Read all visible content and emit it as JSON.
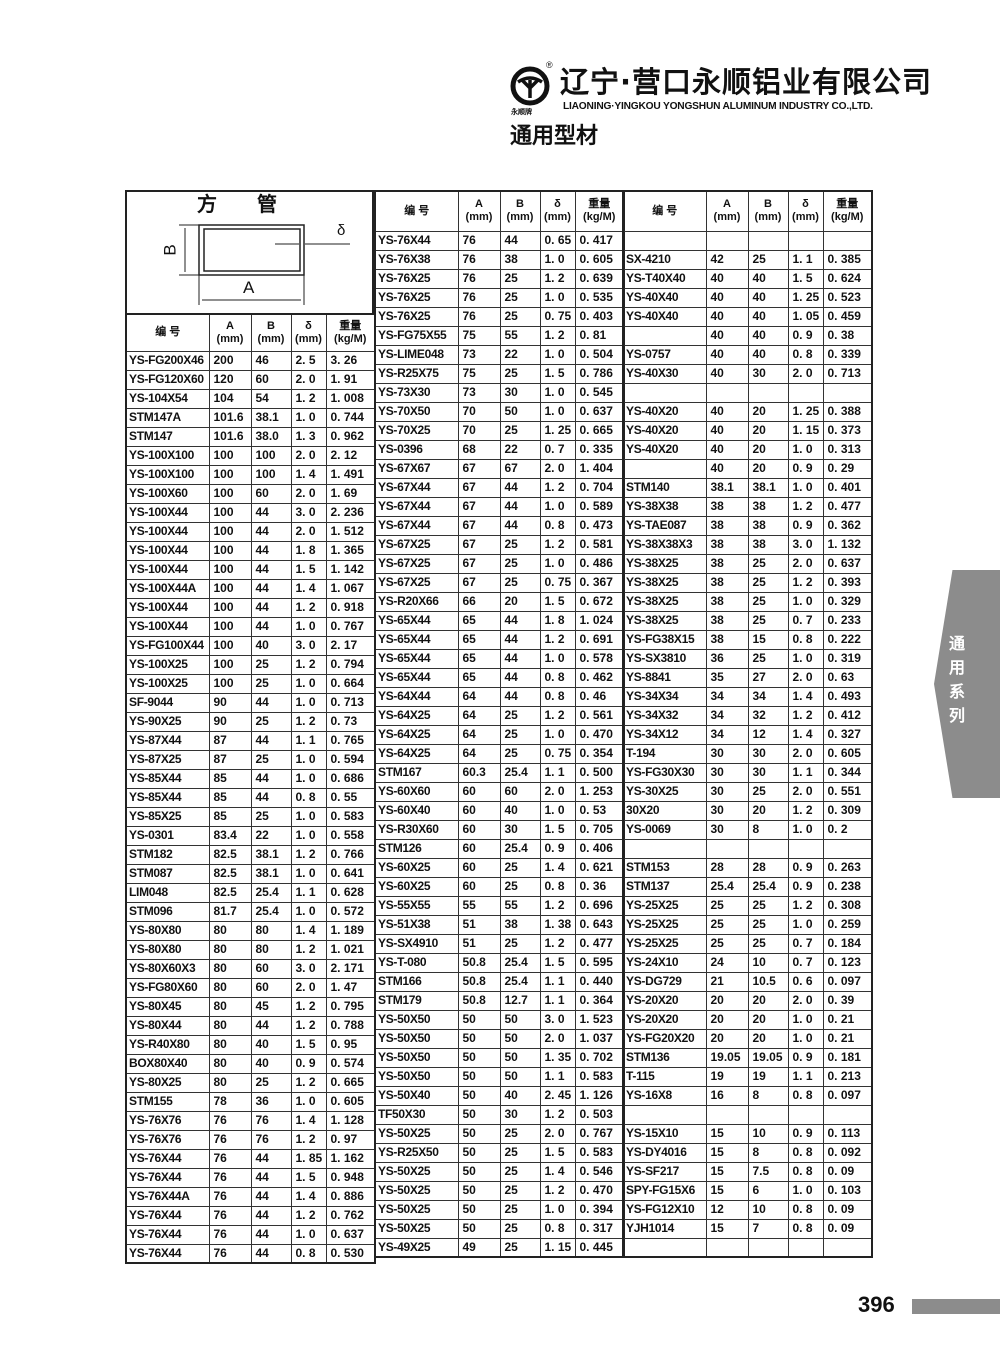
{
  "header": {
    "company_cn": "辽宁·营口永顺铝业有限公司",
    "company_en": "LIAONING·YINGKOU YONGSHUN ALUMINUM INDUSTRY CO.,LTD.",
    "brand_small": "永顺牌",
    "registered_mark": "®",
    "section_title": "通用型材"
  },
  "diagram": {
    "title": "方　　管",
    "label_a": "A",
    "label_b": "B",
    "label_delta": "δ"
  },
  "columns": {
    "code": "编 号",
    "a": "A",
    "a_unit": "(mm)",
    "b": "B",
    "b_unit": "(mm)",
    "d": "δ",
    "d_unit": "(mm)",
    "w": "重量",
    "w_unit": "(kg/M)"
  },
  "tables": [
    {
      "rows": [
        [
          "YS-FG200X46",
          "200",
          "46",
          "2. 5",
          "3. 26"
        ],
        [
          "YS-FG120X60",
          "120",
          "60",
          "2. 0",
          "1. 91"
        ],
        [
          "YS-104X54",
          "104",
          "54",
          "1. 2",
          "1. 008"
        ],
        [
          "STM147A",
          "101.6",
          "38.1",
          "1. 0",
          "0. 744"
        ],
        [
          "STM147",
          "101.6",
          "38.0",
          "1. 3",
          "0. 962"
        ],
        [
          "YS-100X100",
          "100",
          "100",
          "2. 0",
          "2. 12"
        ],
        [
          "YS-100X100",
          "100",
          "100",
          "1. 4",
          "1. 491"
        ],
        [
          "YS-100X60",
          "100",
          "60",
          "2. 0",
          "1. 69"
        ],
        [
          "YS-100X44",
          "100",
          "44",
          "3. 0",
          "2. 236"
        ],
        [
          "YS-100X44",
          "100",
          "44",
          "2. 0",
          "1. 512"
        ],
        [
          "YS-100X44",
          "100",
          "44",
          "1. 8",
          "1. 365"
        ],
        [
          "YS-100X44",
          "100",
          "44",
          "1. 5",
          "1. 142"
        ],
        [
          "YS-100X44A",
          "100",
          "44",
          "1. 4",
          "1. 067"
        ],
        [
          "YS-100X44",
          "100",
          "44",
          "1. 2",
          "0. 918"
        ],
        [
          "YS-100X44",
          "100",
          "44",
          "1. 0",
          "0. 767"
        ],
        [
          "YS-FG100X44",
          "100",
          "40",
          "3. 0",
          "2. 17"
        ],
        [
          "YS-100X25",
          "100",
          "25",
          "1. 2",
          "0. 794"
        ],
        [
          "YS-100X25",
          "100",
          "25",
          "1. 0",
          "0. 664"
        ],
        [
          "SF-9044",
          "90",
          "44",
          "1. 0",
          "0. 713"
        ],
        [
          "YS-90X25",
          "90",
          "25",
          "1. 2",
          "0. 73"
        ],
        [
          "YS-87X44",
          "87",
          "44",
          "1. 1",
          "0. 765"
        ],
        [
          "YS-87X25",
          "87",
          "25",
          "1. 0",
          "0. 594"
        ],
        [
          "YS-85X44",
          "85",
          "44",
          "1. 0",
          "0. 686"
        ],
        [
          "YS-85X44",
          "85",
          "44",
          "0. 8",
          "0. 55"
        ],
        [
          "YS-85X25",
          "85",
          "25",
          "1. 0",
          "0. 583"
        ],
        [
          "YS-0301",
          "83.4",
          "22",
          "1. 0",
          "0. 558"
        ],
        [
          "STM182",
          "82.5",
          "38.1",
          "1. 2",
          "0. 766"
        ],
        [
          "STM087",
          "82.5",
          "38.1",
          "1. 0",
          "0. 641"
        ],
        [
          "LIM048",
          "82.5",
          "25.4",
          "1. 1",
          "0. 628"
        ],
        [
          "STM096",
          "81.7",
          "25.4",
          "1. 0",
          "0. 572"
        ],
        [
          "YS-80X80",
          "80",
          "80",
          "1. 4",
          "1. 189"
        ],
        [
          "YS-80X80",
          "80",
          "80",
          "1. 2",
          "1. 021"
        ],
        [
          "YS-80X60X3",
          "80",
          "60",
          "3. 0",
          "2. 171"
        ],
        [
          "YS-FG80X60",
          "80",
          "60",
          "2. 0",
          "1. 47"
        ],
        [
          "YS-80X45",
          "80",
          "45",
          "1. 2",
          "0. 795"
        ],
        [
          "YS-80X44",
          "80",
          "44",
          "1. 2",
          "0. 788"
        ],
        [
          "YS-R40X80",
          "80",
          "40",
          "1. 5",
          "0. 95"
        ],
        [
          "BOX80X40",
          "80",
          "40",
          "0. 9",
          "0. 574"
        ],
        [
          "YS-80X25",
          "80",
          "25",
          "1. 2",
          "0. 665"
        ],
        [
          "STM155",
          "78",
          "36",
          "1. 0",
          "0. 605"
        ],
        [
          "YS-76X76",
          "76",
          "76",
          "1. 4",
          "1. 128"
        ],
        [
          "YS-76X76",
          "76",
          "76",
          "1. 2",
          "0. 97"
        ],
        [
          "YS-76X44",
          "76",
          "44",
          "1. 85",
          "1. 162"
        ],
        [
          "YS-76X44",
          "76",
          "44",
          "1. 5",
          "0. 948"
        ],
        [
          "YS-76X44A",
          "76",
          "44",
          "1. 4",
          "0. 886"
        ],
        [
          "YS-76X44",
          "76",
          "44",
          "1. 2",
          "0. 762"
        ],
        [
          "YS-76X44",
          "76",
          "44",
          "1. 0",
          "0. 637"
        ],
        [
          "YS-76X44",
          "76",
          "44",
          "0. 8",
          "0. 530"
        ]
      ]
    },
    {
      "rows": [
        [
          "YS-76X44",
          "76",
          "44",
          "0. 65",
          "0. 417"
        ],
        [
          "YS-76X38",
          "76",
          "38",
          "1. 0",
          "0. 605"
        ],
        [
          "YS-76X25",
          "76",
          "25",
          "1. 2",
          "0. 639"
        ],
        [
          "YS-76X25",
          "76",
          "25",
          "1. 0",
          "0. 535"
        ],
        [
          "YS-76X25",
          "76",
          "25",
          "0. 75",
          "0. 403"
        ],
        [
          "YS-FG75X55",
          "75",
          "55",
          "1. 2",
          "0. 81"
        ],
        [
          "YS-LIME048",
          "73",
          "22",
          "1. 0",
          "0. 504"
        ],
        [
          "YS-R25X75",
          "75",
          "25",
          "1. 5",
          "0. 786"
        ],
        [
          "YS-73X30",
          "73",
          "30",
          "1. 0",
          "0. 545"
        ],
        [
          "YS-70X50",
          "70",
          "50",
          "1. 0",
          "0. 637"
        ],
        [
          "YS-70X25",
          "70",
          "25",
          "1. 25",
          "0. 665"
        ],
        [
          "YS-0396",
          "68",
          "22",
          "0. 7",
          "0. 335"
        ],
        [
          "YS-67X67",
          "67",
          "67",
          "2. 0",
          "1. 404"
        ],
        [
          "YS-67X44",
          "67",
          "44",
          "1. 2",
          "0. 704"
        ],
        [
          "YS-67X44",
          "67",
          "44",
          "1. 0",
          "0. 589"
        ],
        [
          "YS-67X44",
          "67",
          "44",
          "0. 8",
          "0. 473"
        ],
        [
          "YS-67X25",
          "67",
          "25",
          "1. 2",
          "0. 581"
        ],
        [
          "YS-67X25",
          "67",
          "25",
          "1. 0",
          "0. 486"
        ],
        [
          "YS-67X25",
          "67",
          "25",
          "0. 75",
          "0. 367"
        ],
        [
          "YS-R20X66",
          "66",
          "20",
          "1. 5",
          "0. 672"
        ],
        [
          "YS-65X44",
          "65",
          "44",
          "1. 8",
          "1. 024"
        ],
        [
          "YS-65X44",
          "65",
          "44",
          "1. 2",
          "0. 691"
        ],
        [
          "YS-65X44",
          "65",
          "44",
          "1. 0",
          "0. 578"
        ],
        [
          "YS-65X44",
          "65",
          "44",
          "0. 8",
          "0. 462"
        ],
        [
          "YS-64X44",
          "64",
          "44",
          "0. 8",
          "0. 46"
        ],
        [
          "YS-64X25",
          "64",
          "25",
          "1. 2",
          "0. 561"
        ],
        [
          "YS-64X25",
          "64",
          "25",
          "1. 0",
          "0. 470"
        ],
        [
          "YS-64X25",
          "64",
          "25",
          "0. 75",
          "0. 354"
        ],
        [
          "STM167",
          "60.3",
          "25.4",
          "1. 1",
          "0. 500"
        ],
        [
          "YS-60X60",
          "60",
          "60",
          "2. 0",
          "1. 253"
        ],
        [
          "YS-60X40",
          "60",
          "40",
          "1. 0",
          "0. 53"
        ],
        [
          "YS-R30X60",
          "60",
          "30",
          "1. 5",
          "0. 705"
        ],
        [
          "STM126",
          "60",
          "25.4",
          "0. 9",
          "0. 406"
        ],
        [
          "YS-60X25",
          "60",
          "25",
          "1. 4",
          "0. 621"
        ],
        [
          "YS-60X25",
          "60",
          "25",
          "0. 8",
          "0. 36"
        ],
        [
          "YS-55X55",
          "55",
          "55",
          "1. 2",
          "0. 696"
        ],
        [
          "YS-51X38",
          "51",
          "38",
          "1. 38",
          "0. 643"
        ],
        [
          "YS-SX4910",
          "51",
          "25",
          "1. 2",
          "0. 477"
        ],
        [
          "YS-T-080",
          "50.8",
          "25.4",
          "1. 5",
          "0. 595"
        ],
        [
          "STM166",
          "50.8",
          "25.4",
          "1. 1",
          "0. 440"
        ],
        [
          "STM179",
          "50.8",
          "12.7",
          "1. 1",
          "0. 364"
        ],
        [
          "YS-50X50",
          "50",
          "50",
          "3. 0",
          "1. 523"
        ],
        [
          "YS-50X50",
          "50",
          "50",
          "2. 0",
          "1. 037"
        ],
        [
          "YS-50X50",
          "50",
          "50",
          "1. 35",
          "0. 702"
        ],
        [
          "YS-50X50",
          "50",
          "50",
          "1. 1",
          "0. 583"
        ],
        [
          "YS-50X40",
          "50",
          "40",
          "2. 45",
          "1. 126"
        ],
        [
          "TF50X30",
          "50",
          "30",
          "1. 2",
          "0. 503"
        ],
        [
          "YS-50X25",
          "50",
          "25",
          "2. 0",
          "0. 767"
        ],
        [
          "YS-R25X50",
          "50",
          "25",
          "1. 5",
          "0. 583"
        ],
        [
          "YS-50X25",
          "50",
          "25",
          "1. 4",
          "0. 546"
        ],
        [
          "YS-50X25",
          "50",
          "25",
          "1. 2",
          "0. 470"
        ],
        [
          "YS-50X25",
          "50",
          "25",
          "1. 0",
          "0. 394"
        ],
        [
          "YS-50X25",
          "50",
          "25",
          "0. 8",
          "0. 317"
        ],
        [
          "YS-49X25",
          "49",
          "25",
          "1. 15",
          "0. 445"
        ]
      ]
    },
    {
      "rows": [
        [
          "",
          "",
          "",
          "",
          ""
        ],
        [
          "SX-4210",
          "42",
          "25",
          "1. 1",
          "0. 385"
        ],
        [
          "YS-T40X40",
          "40",
          "40",
          "1. 5",
          "0. 624"
        ],
        [
          "YS-40X40",
          "40",
          "40",
          "1. 25",
          "0. 523"
        ],
        [
          "YS-40X40",
          "40",
          "40",
          "1. 05",
          "0. 459"
        ],
        [
          "",
          "40",
          "40",
          "0. 9",
          "0. 38"
        ],
        [
          "YS-0757",
          "40",
          "40",
          "0. 8",
          "0. 339"
        ],
        [
          "YS-40X30",
          "40",
          "30",
          "2. 0",
          "0. 713"
        ],
        [
          "",
          "",
          "",
          "",
          ""
        ],
        [
          "YS-40X20",
          "40",
          "20",
          "1. 25",
          "0. 388"
        ],
        [
          "YS-40X20",
          "40",
          "20",
          "1. 15",
          "0. 373"
        ],
        [
          "YS-40X20",
          "40",
          "20",
          "1. 0",
          "0. 313"
        ],
        [
          "",
          "40",
          "20",
          "0. 9",
          "0. 29"
        ],
        [
          "STM140",
          "38.1",
          "38.1",
          "1. 0",
          "0. 401"
        ],
        [
          "YS-38X38",
          "38",
          "38",
          "1. 2",
          "0. 477"
        ],
        [
          "YS-TAE087",
          "38",
          "38",
          "0. 9",
          "0. 362"
        ],
        [
          "YS-38X38X3",
          "38",
          "38",
          "3. 0",
          "1. 132"
        ],
        [
          "YS-38X25",
          "38",
          "25",
          "2. 0",
          "0. 637"
        ],
        [
          "YS-38X25",
          "38",
          "25",
          "1. 2",
          "0. 393"
        ],
        [
          "YS-38X25",
          "38",
          "25",
          "1. 0",
          "0. 329"
        ],
        [
          "YS-38X25",
          "38",
          "25",
          "0. 7",
          "0. 233"
        ],
        [
          "YS-FG38X15",
          "38",
          "15",
          "0. 8",
          "0. 222"
        ],
        [
          "YS-SX3810",
          "36",
          "25",
          "1. 0",
          "0. 319"
        ],
        [
          "YS-8841",
          "35",
          "27",
          "2. 0",
          "0. 63"
        ],
        [
          "YS-34X34",
          "34",
          "34",
          "1. 4",
          "0. 493"
        ],
        [
          "YS-34X32",
          "34",
          "32",
          "1. 2",
          "0. 412"
        ],
        [
          "YS-34X12",
          "34",
          "12",
          "1. 4",
          "0. 327"
        ],
        [
          "T-194",
          "30",
          "30",
          "2. 0",
          "0. 605"
        ],
        [
          "YS-FG30X30",
          "30",
          "30",
          "1. 1",
          "0. 344"
        ],
        [
          "YS-30X25",
          "30",
          "25",
          "2. 0",
          "0. 551"
        ],
        [
          "30X20",
          "30",
          "20",
          "1. 2",
          "0. 309"
        ],
        [
          "YS-0069",
          "30",
          "8",
          "1. 0",
          "0. 2"
        ],
        [
          "",
          "",
          "",
          "",
          ""
        ],
        [
          "STM153",
          "28",
          "28",
          "0. 9",
          "0. 263"
        ],
        [
          "STM137",
          "25.4",
          "25.4",
          "0. 9",
          "0. 238"
        ],
        [
          "YS-25X25",
          "25",
          "25",
          "1. 2",
          "0. 308"
        ],
        [
          "YS-25X25",
          "25",
          "25",
          "1. 0",
          "0. 259"
        ],
        [
          "YS-25X25",
          "25",
          "25",
          "0. 7",
          "0. 184"
        ],
        [
          "YS-24X10",
          "24",
          "10",
          "0. 7",
          "0. 123"
        ],
        [
          "YS-DG729",
          "21",
          "10.5",
          "0. 6",
          "0. 097"
        ],
        [
          "YS-20X20",
          "20",
          "20",
          "2. 0",
          "0. 39"
        ],
        [
          "YS-20X20",
          "20",
          "20",
          "1. 0",
          "0. 21"
        ],
        [
          "YS-FG20X20",
          "20",
          "20",
          "1. 0",
          "0. 21"
        ],
        [
          "STM136",
          "19.05",
          "19.05",
          "0. 9",
          "0. 181"
        ],
        [
          "T-115",
          "19",
          "19",
          "1. 1",
          "0. 213"
        ],
        [
          "YS-16X8",
          "16",
          "8",
          "0. 8",
          "0. 097"
        ],
        [
          "",
          "",
          "",
          "",
          ""
        ],
        [
          "YS-15X10",
          "15",
          "10",
          "0. 9",
          "0. 113"
        ],
        [
          "YS-DY4016",
          "15",
          "8",
          "0. 8",
          "0. 092"
        ],
        [
          "YS-SF217",
          "15",
          "7.5",
          "0. 8",
          "0. 09"
        ],
        [
          "SPY-FG15X6",
          "15",
          "6",
          "1. 0",
          "0. 103"
        ],
        [
          "YS-FG12X10",
          "12",
          "10",
          "0. 8",
          "0. 09"
        ],
        [
          "YJH1014",
          "15",
          "7",
          "0. 8",
          "0. 09"
        ],
        [
          "",
          "",
          "",
          "",
          ""
        ]
      ]
    }
  ],
  "side_tab": {
    "label": "通用系列",
    "color": "#8c8c8c"
  },
  "footer": {
    "page_number": "396"
  }
}
